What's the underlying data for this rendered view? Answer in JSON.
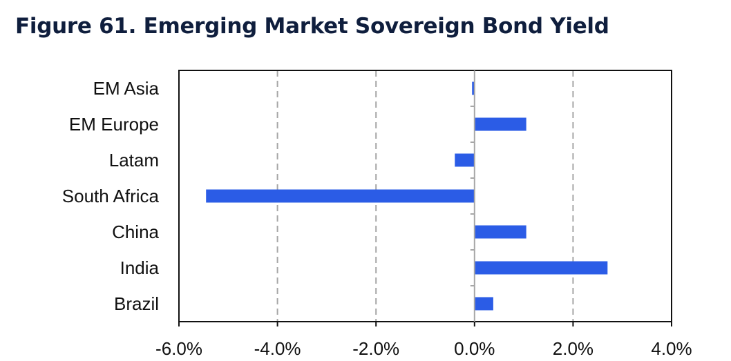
{
  "title": "Figure 61. Emerging Market Sovereign Bond Yield",
  "chart_data": {
    "type": "bar",
    "orientation": "horizontal",
    "categories": [
      "EM Asia",
      "EM Europe",
      "Latam",
      "South Africa",
      "China",
      "India",
      "Brazil"
    ],
    "values": [
      -0.05,
      1.05,
      -0.4,
      -5.45,
      1.05,
      2.7,
      0.38
    ],
    "xlim": [
      -6.0,
      4.0
    ],
    "xticks": [
      -6.0,
      -4.0,
      -2.0,
      0.0,
      2.0,
      4.0
    ],
    "tick_labels": [
      "-6.0%",
      "-4.0%",
      "-2.0%",
      "0.0%",
      "2.0%",
      "4.0%"
    ],
    "grid": "vertical dashed",
    "bar_color": "#2b5ce6",
    "grid_color": "#a6a6a6"
  }
}
